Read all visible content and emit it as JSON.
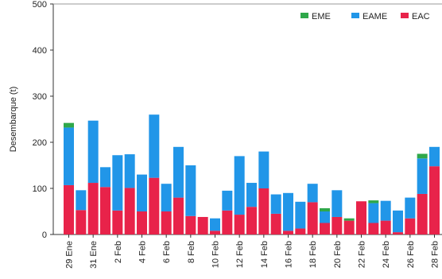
{
  "chart_data": {
    "type": "bar",
    "stacked": true,
    "title": "",
    "xlabel": "",
    "ylabel": "Desembarque (t)",
    "ylim": [
      0,
      500
    ],
    "yticks": [
      0,
      100,
      200,
      300,
      400,
      500
    ],
    "legend_position": "top-right",
    "grid": false,
    "categories": [
      "29 Ene",
      "30 Ene",
      "31 Ene",
      "1 Feb",
      "2 Feb",
      "3 Feb",
      "4 Feb",
      "5 Feb",
      "6 Feb",
      "7 Feb",
      "8 Feb",
      "9 Feb",
      "10 Feb",
      "11 Feb",
      "12 Feb",
      "13 Feb",
      "14 Feb",
      "15 Feb",
      "16 Feb",
      "17 Feb",
      "18 Feb",
      "19 Feb",
      "20 Feb",
      "21 Feb",
      "22 Feb",
      "23 Feb",
      "24 Feb",
      "25 Feb",
      "26 Feb",
      "27 Feb",
      "28 Feb"
    ],
    "tick_labels": [
      "29 Ene",
      "31 Ene",
      "2 Feb",
      "4 Feb",
      "6 Feb",
      "8 Feb",
      "10 Feb",
      "12 Feb",
      "14 Feb",
      "16 Feb",
      "18 Feb",
      "20 Feb",
      "22 Feb",
      "24 Feb",
      "26 Feb",
      "28 Feb"
    ],
    "series": [
      {
        "name": "EAC",
        "color": "#e8234a",
        "values": [
          107,
          53,
          112,
          103,
          52,
          101,
          50,
          123,
          50,
          80,
          40,
          38,
          8,
          52,
          43,
          60,
          100,
          45,
          8,
          13,
          70,
          25,
          38,
          30,
          72,
          25,
          30,
          5,
          35,
          88,
          148
        ]
      },
      {
        "name": "EAME",
        "color": "#2196e8",
        "values": [
          125,
          43,
          135,
          43,
          120,
          73,
          80,
          137,
          60,
          110,
          110,
          0,
          27,
          43,
          127,
          52,
          80,
          42,
          82,
          58,
          40,
          25,
          58,
          0,
          0,
          43,
          43,
          47,
          45,
          77,
          42
        ]
      },
      {
        "name": "EME",
        "color": "#2fa84a",
        "values": [
          10,
          0,
          0,
          0,
          0,
          0,
          0,
          0,
          0,
          0,
          0,
          0,
          0,
          0,
          0,
          0,
          0,
          0,
          0,
          0,
          0,
          7,
          0,
          5,
          0,
          6,
          0,
          0,
          0,
          10,
          0
        ]
      }
    ],
    "legend_order": [
      "EME",
      "EAME",
      "EAC"
    ]
  }
}
